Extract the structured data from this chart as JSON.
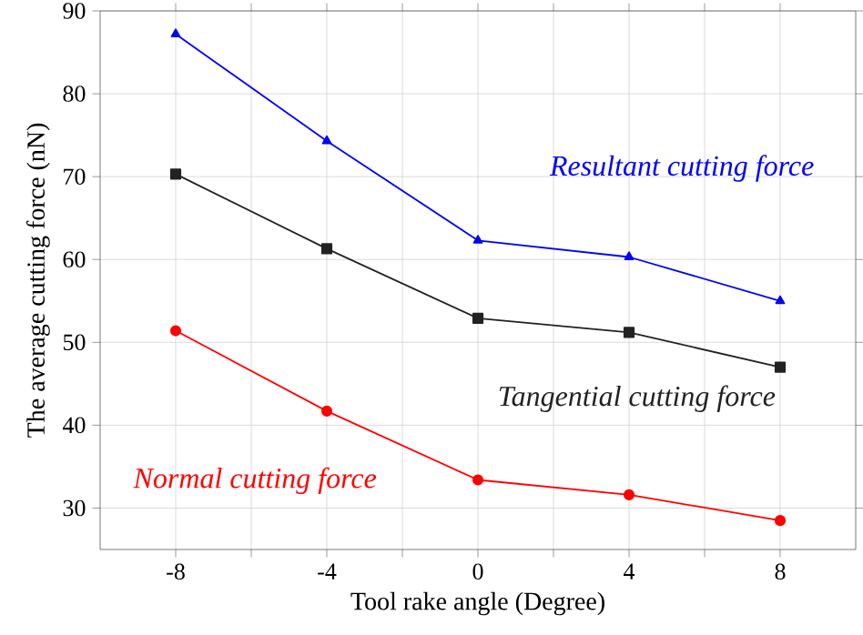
{
  "chart_data": {
    "type": "line",
    "xlabel": "Tool rake angle (Degree)",
    "ylabel": "The average cutting force (nN)",
    "x": [
      -8,
      -4,
      0,
      4,
      8
    ],
    "series": [
      {
        "name": "Resultant cutting force",
        "color": "#0000ff",
        "marker": "triangle",
        "values": [
          87.2,
          74.3,
          62.3,
          60.3,
          55.0
        ]
      },
      {
        "name": "Tangential cutting force",
        "color": "#222222",
        "marker": "square",
        "values": [
          70.3,
          61.3,
          52.9,
          51.2,
          47.0
        ]
      },
      {
        "name": "Normal cutting force",
        "color": "#ff0000",
        "marker": "circle",
        "values": [
          51.4,
          41.7,
          33.4,
          31.6,
          28.5
        ]
      }
    ],
    "xlim": [
      -10,
      10
    ],
    "ylim": [
      25,
      90
    ],
    "xticks": [
      -8,
      {
        "value": -6,
        "label": null
      },
      -4,
      {
        "value": -2,
        "label": null
      },
      0,
      {
        "value": 2,
        "label": null
      },
      4,
      {
        "value": 6,
        "label": null
      },
      8
    ],
    "yticks": [
      30,
      40,
      50,
      60,
      70,
      80,
      90
    ],
    "grid": true,
    "legend": false,
    "line_style": "solid"
  }
}
